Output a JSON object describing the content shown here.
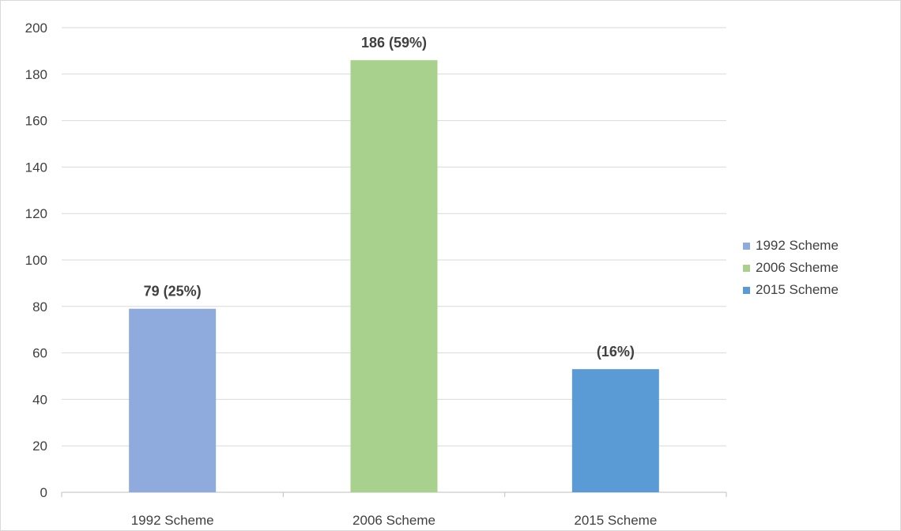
{
  "chart_data": {
    "type": "bar",
    "categories": [
      "1992 Scheme",
      "2006 Scheme",
      "2015 Scheme"
    ],
    "values": [
      79,
      186,
      53
    ],
    "data_labels": [
      "79 (25%)",
      "186 (59%)",
      "(16%)"
    ],
    "colors": [
      "#8faadc",
      "#a9d18e",
      "#5b9bd5"
    ],
    "ylim": [
      0,
      200
    ],
    "yticks": [
      "0",
      "20",
      "40",
      "60",
      "80",
      "100",
      "120",
      "140",
      "160",
      "180",
      "200"
    ],
    "grid": true,
    "legend_position": "right",
    "legend": [
      "1992 Scheme",
      "2006 Scheme",
      "2015 Scheme"
    ],
    "title": "",
    "xlabel": "",
    "ylabel": ""
  }
}
